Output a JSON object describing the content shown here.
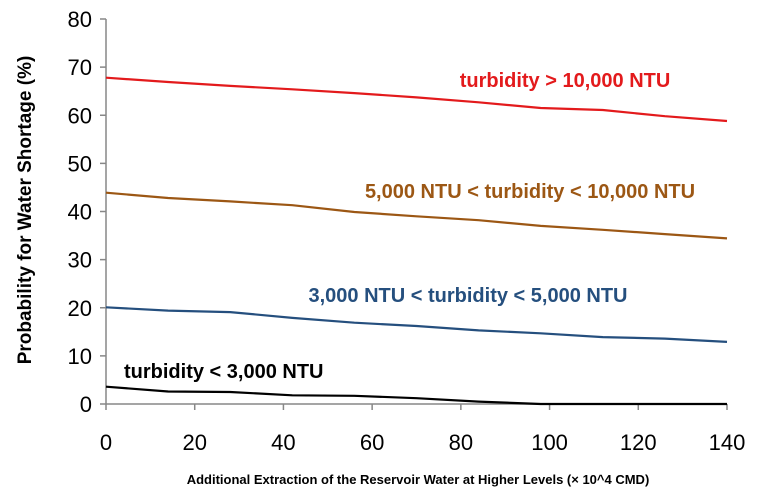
{
  "chart_data": {
    "type": "line",
    "title": "",
    "xlabel": "Additional Extraction of the Reservoir Water at Higher Levels (× 10^4 CMD)",
    "ylabel": "Probability for Water Shortage (%)",
    "xlim": [
      0,
      140
    ],
    "ylim": [
      0,
      80
    ],
    "xticks": [
      0,
      20,
      40,
      60,
      80,
      100,
      120,
      140
    ],
    "yticks": [
      0,
      10,
      20,
      30,
      40,
      50,
      60,
      70,
      80
    ],
    "grid": false,
    "legend": "inline-labels",
    "series": [
      {
        "name": "turbidity > 10,000 NTU",
        "color": "#e31a1c",
        "x": [
          0,
          14,
          28,
          42,
          56,
          70,
          84,
          98,
          112,
          126,
          140
        ],
        "y": [
          67.8,
          66.9,
          66.1,
          65.4,
          64.6,
          63.7,
          62.7,
          61.5,
          61.1,
          59.8,
          58.8
        ]
      },
      {
        "name": "5,000 NTU < turbidity < 10,000 NTU",
        "color": "#9c5714",
        "x": [
          0,
          14,
          28,
          42,
          56,
          70,
          84,
          98,
          112,
          126,
          140
        ],
        "y": [
          43.9,
          42.8,
          42.1,
          41.3,
          39.9,
          39.0,
          38.2,
          37.0,
          36.2,
          35.3,
          34.4
        ]
      },
      {
        "name": "3,000 NTU < turbidity < 5,000 NTU",
        "color": "#254f7e",
        "x": [
          0,
          14,
          28,
          42,
          56,
          70,
          84,
          98,
          112,
          126,
          140
        ],
        "y": [
          20.1,
          19.4,
          19.1,
          17.9,
          16.9,
          16.2,
          15.3,
          14.7,
          13.9,
          13.6,
          12.9
        ]
      },
      {
        "name": "turbidity < 3,000 NTU",
        "color": "#000000",
        "x": [
          0,
          14,
          28,
          42,
          56,
          70,
          84,
          98,
          112,
          126,
          140
        ],
        "y": [
          3.6,
          2.6,
          2.5,
          1.8,
          1.7,
          1.2,
          0.5,
          0.0,
          0.0,
          0.0,
          0.0
        ]
      }
    ]
  }
}
